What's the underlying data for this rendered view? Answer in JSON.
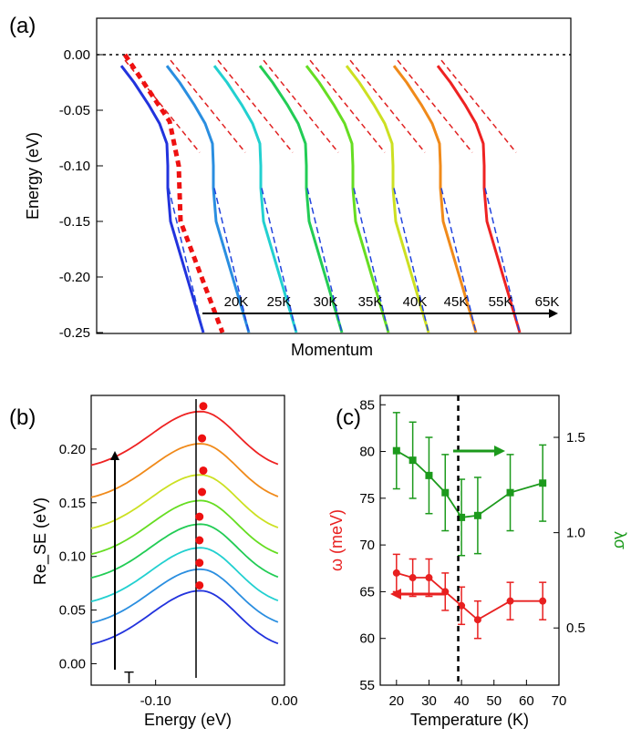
{
  "chart_data": [
    {
      "panel": "(a)",
      "type": "line",
      "xlabel": "Momentum",
      "ylabel": "Energy (eV)",
      "ylim": [
        -0.25,
        0.02
      ],
      "y_ticks": [
        "0.00",
        "-0.05",
        "-0.10",
        "-0.15",
        "-0.20",
        "-0.25"
      ],
      "series": [
        {
          "name": "20K",
          "color": "#2233dd"
        },
        {
          "name": "25K",
          "color": "#2a8ee0"
        },
        {
          "name": "30K",
          "color": "#22d0d0"
        },
        {
          "name": "35K",
          "color": "#22cc55"
        },
        {
          "name": "40K",
          "color": "#66dd22"
        },
        {
          "name": "45K",
          "color": "#cce022"
        },
        {
          "name": "55K",
          "color": "#f08a1a"
        },
        {
          "name": "65K",
          "color": "#ee2222"
        }
      ],
      "annotations": {
        "arrow": "temperature increases to the right",
        "zero_line": "dotted at E = 0"
      }
    },
    {
      "panel": "(b)",
      "type": "line",
      "xlabel": "Energy (eV)",
      "ylabel": "Re_SE (eV)",
      "xlim": [
        -0.15,
        0.0
      ],
      "ylim": [
        -0.02,
        0.25
      ],
      "x_ticks": [
        "-0.10",
        "0.00"
      ],
      "y_ticks": [
        "0.00",
        "0.05",
        "0.10",
        "0.15",
        "0.20"
      ],
      "series": [
        {
          "peak_energy": -0.065,
          "peak_value": 0.068,
          "color": "#2233dd"
        },
        {
          "peak_energy": -0.065,
          "peak_value": 0.088,
          "color": "#2a8ee0"
        },
        {
          "peak_energy": -0.065,
          "peak_value": 0.108,
          "color": "#22d0d0"
        },
        {
          "peak_energy": -0.065,
          "peak_value": 0.13,
          "color": "#22cc55"
        },
        {
          "peak_energy": -0.065,
          "peak_value": 0.152,
          "color": "#66dd22"
        },
        {
          "peak_energy": -0.065,
          "peak_value": 0.176,
          "color": "#cce022"
        },
        {
          "peak_energy": -0.065,
          "peak_value": 0.205,
          "color": "#f08a1a"
        },
        {
          "peak_energy": -0.065,
          "peak_value": 0.235,
          "color": "#ee2222"
        }
      ],
      "markers": [
        {
          "x": -0.066,
          "y": 0.073
        },
        {
          "x": -0.066,
          "y": 0.094
        },
        {
          "x": -0.066,
          "y": 0.115
        },
        {
          "x": -0.066,
          "y": 0.137
        },
        {
          "x": -0.064,
          "y": 0.16
        },
        {
          "x": -0.063,
          "y": 0.18
        },
        {
          "x": -0.064,
          "y": 0.21
        },
        {
          "x": -0.063,
          "y": 0.24
        }
      ],
      "arrow_label": "T"
    },
    {
      "panel": "(c)",
      "type": "line",
      "xlabel": "Temperature (K)",
      "ylabel": "ω (meV)",
      "ylabel_right": "λσ",
      "xlim": [
        15,
        70
      ],
      "ylim": [
        55,
        86
      ],
      "y2lim": [
        0.2,
        1.72
      ],
      "x_ticks": [
        "20",
        "30",
        "40",
        "50",
        "60",
        "70"
      ],
      "y_ticks": [
        "55",
        "60",
        "65",
        "70",
        "75",
        "80",
        "85"
      ],
      "y2_ticks": [
        "0.5",
        "1.0",
        "1.5"
      ],
      "vline_x": 39,
      "series": [
        {
          "axis": "left",
          "color": "#e82020",
          "marker": "circle",
          "x": [
            20,
            25,
            30,
            35,
            40,
            45,
            55,
            65
          ],
          "y": [
            67,
            66.5,
            66.5,
            65,
            63.5,
            62,
            64,
            64
          ],
          "err": [
            2,
            2,
            2,
            2,
            2,
            2,
            2,
            2
          ]
        },
        {
          "axis": "right",
          "color": "#1c9a1c",
          "marker": "square",
          "x": [
            20,
            25,
            30,
            35,
            40,
            45,
            55,
            65
          ],
          "y": [
            1.43,
            1.38,
            1.3,
            1.21,
            1.08,
            1.09,
            1.21,
            1.26
          ],
          "err": [
            0.2,
            0.2,
            0.2,
            0.2,
            0.2,
            0.2,
            0.2,
            0.2
          ]
        }
      ]
    }
  ]
}
